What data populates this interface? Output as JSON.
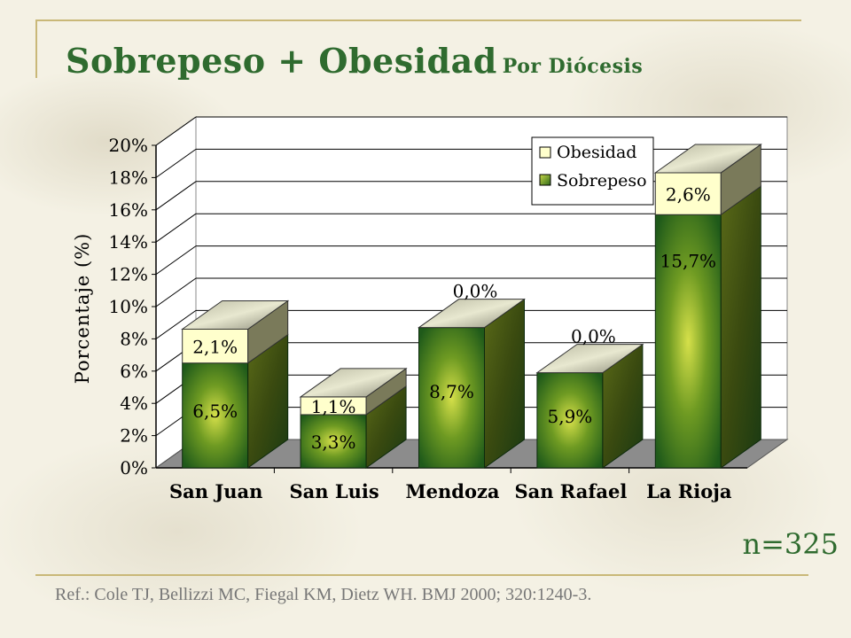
{
  "title": {
    "main": "Sobrepeso + Obesidad",
    "sub": "Por Diócesis"
  },
  "n_label": "n=325",
  "reference": "Ref.: Cole TJ, Bellizzi MC, Fiegal KM, Dietz WH.  BMJ 2000; 320:1240-3.",
  "colors": {
    "title": "#2f6b2f",
    "sobrepeso": "#5a8a1e",
    "obesidad": "#ffffcc",
    "floor": "#8c8c8c"
  },
  "chart_data": {
    "type": "bar",
    "stacked": true,
    "categories": [
      "San Juan",
      "San Luis",
      "Mendoza",
      "San Rafael",
      "La Rioja"
    ],
    "series": [
      {
        "name": "Sobrepeso",
        "values": [
          6.5,
          3.3,
          8.7,
          5.9,
          15.7
        ],
        "labels": [
          "6,5%",
          "3,3%",
          "8,7%",
          "5,9%",
          "15,7%"
        ]
      },
      {
        "name": "Obesidad",
        "values": [
          2.1,
          1.1,
          0.0,
          0.0,
          2.6
        ],
        "labels": [
          "2,1%",
          "1,1%",
          "0,0%",
          "0,0%",
          "2,6%"
        ]
      }
    ],
    "ylabel": "Porcentaje (%)",
    "ylim": [
      0,
      20
    ],
    "yticks": [
      "0%",
      "2%",
      "4%",
      "6%",
      "8%",
      "10%",
      "12%",
      "14%",
      "16%",
      "18%",
      "20%"
    ],
    "grid": true,
    "legend_position": "top-right"
  }
}
